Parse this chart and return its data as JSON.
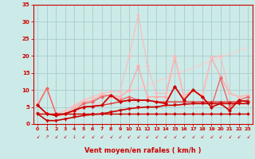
{
  "background_color": "#cceae7",
  "grid_color": "#aacccc",
  "xlabel": "Vent moyen/en rafales ( km/h )",
  "xlabel_color": "#cc0000",
  "axis_color": "#cc0000",
  "tick_color": "#cc0000",
  "xlim": [
    -0.5,
    23.5
  ],
  "ylim": [
    0,
    35
  ],
  "yticks": [
    0,
    5,
    10,
    15,
    20,
    25,
    30,
    35
  ],
  "xticks": [
    0,
    1,
    2,
    3,
    4,
    5,
    6,
    7,
    8,
    9,
    10,
    11,
    12,
    13,
    14,
    15,
    16,
    17,
    18,
    19,
    20,
    21,
    22,
    23
  ],
  "series": [
    {
      "x": [
        0,
        1,
        2,
        3,
        4,
        5,
        6,
        7,
        8,
        9,
        10,
        11,
        12,
        13,
        14,
        15,
        16,
        17,
        18,
        19,
        20,
        21,
        22,
        23
      ],
      "y": [
        3.0,
        3.0,
        3.0,
        3.0,
        3.0,
        3.0,
        3.0,
        3.0,
        3.0,
        3.0,
        3.0,
        3.0,
        3.0,
        3.0,
        3.0,
        3.0,
        3.0,
        3.0,
        3.0,
        3.0,
        3.0,
        3.0,
        3.0,
        3.0
      ],
      "color": "#cc0000",
      "lw": 1.0,
      "marker": "D",
      "ms": 1.8,
      "zorder": 4
    },
    {
      "x": [
        0,
        1,
        2,
        3,
        4,
        5,
        6,
        7,
        8,
        9,
        10,
        11,
        12,
        13,
        14,
        15,
        16,
        17,
        18,
        19,
        20,
        21,
        22,
        23
      ],
      "y": [
        3.0,
        1.0,
        1.0,
        1.5,
        2.0,
        2.5,
        2.8,
        3.0,
        3.5,
        4.0,
        4.5,
        4.8,
        5.0,
        5.0,
        5.5,
        5.5,
        5.8,
        6.0,
        6.0,
        6.0,
        6.0,
        6.0,
        6.0,
        6.0
      ],
      "color": "#cc0000",
      "lw": 1.2,
      "marker": "v",
      "ms": 2.5,
      "zorder": 4
    },
    {
      "x": [
        0,
        1,
        2,
        3,
        4,
        5,
        6,
        7,
        8,
        9,
        10,
        11,
        12,
        13,
        14,
        15,
        16,
        17,
        18,
        19,
        20,
        21,
        22,
        23
      ],
      "y": [
        5.5,
        3.0,
        2.5,
        3.0,
        4.0,
        5.0,
        5.2,
        5.5,
        6.0,
        6.5,
        7.0,
        7.0,
        7.0,
        6.5,
        6.5,
        6.5,
        6.5,
        6.5,
        6.5,
        6.5,
        6.5,
        6.5,
        6.5,
        7.0
      ],
      "color": "#dd3333",
      "lw": 1.0,
      "marker": "+",
      "ms": 3.0,
      "zorder": 3
    },
    {
      "x": [
        0,
        1,
        2,
        3,
        4,
        5,
        6,
        7,
        8,
        9,
        10,
        11,
        12,
        13,
        14,
        15,
        16,
        17,
        18,
        19,
        20,
        21,
        22,
        23
      ],
      "y": [
        5.5,
        3.0,
        2.5,
        3.0,
        4.0,
        5.0,
        5.2,
        5.5,
        8.5,
        6.5,
        7.0,
        7.0,
        7.0,
        6.5,
        6.0,
        11.0,
        7.0,
        10.0,
        8.0,
        5.0,
        6.0,
        4.0,
        7.0,
        6.5
      ],
      "color": "#cc0000",
      "lw": 1.2,
      "marker": "D",
      "ms": 2.0,
      "zorder": 4
    },
    {
      "x": [
        0,
        1,
        2,
        3,
        4,
        5,
        6,
        7,
        8,
        9,
        10,
        11,
        12,
        13,
        14,
        15,
        16,
        17,
        18,
        19,
        20,
        21,
        22,
        23
      ],
      "y": [
        5.5,
        10.5,
        3.0,
        3.0,
        4.0,
        6.0,
        6.5,
        8.0,
        8.5,
        7.0,
        8.0,
        7.0,
        7.0,
        6.5,
        6.0,
        11.0,
        7.0,
        10.0,
        8.0,
        5.0,
        13.5,
        5.0,
        7.0,
        8.0
      ],
      "color": "#ee6666",
      "lw": 1.0,
      "marker": "D",
      "ms": 2.0,
      "zorder": 3
    },
    {
      "x": [
        0,
        1,
        2,
        3,
        4,
        5,
        6,
        7,
        8,
        9,
        10,
        11,
        12,
        13,
        14,
        15,
        16,
        17,
        18,
        19,
        20,
        21,
        22,
        23
      ],
      "y": [
        6.0,
        10.5,
        3.0,
        3.0,
        5.0,
        6.5,
        7.0,
        8.5,
        8.5,
        8.0,
        10.0,
        17.0,
        8.0,
        8.0,
        8.0,
        19.5,
        8.0,
        10.0,
        8.0,
        19.5,
        14.0,
        9.0,
        8.0,
        8.5
      ],
      "color": "#ffaaaa",
      "lw": 1.0,
      "marker": "D",
      "ms": 2.0,
      "zorder": 2
    },
    {
      "x": [
        0,
        1,
        2,
        3,
        4,
        5,
        6,
        7,
        8,
        9,
        10,
        11,
        12,
        13,
        14,
        15,
        16,
        17,
        18,
        19,
        20,
        21,
        22,
        23
      ],
      "y": [
        6.0,
        10.5,
        3.0,
        4.0,
        5.5,
        7.0,
        8.0,
        9.0,
        9.5,
        9.5,
        20.0,
        32.0,
        17.0,
        9.0,
        9.0,
        20.0,
        8.5,
        10.0,
        8.5,
        19.5,
        20.0,
        9.0,
        8.0,
        8.5
      ],
      "color": "#ffbbbb",
      "lw": 0.8,
      "marker": "D",
      "ms": 1.8,
      "zorder": 2
    },
    {
      "x": [
        0,
        1,
        2,
        3,
        4,
        5,
        6,
        7,
        8,
        9,
        10,
        11,
        12,
        13,
        14,
        15,
        16,
        17,
        18,
        19,
        20,
        21,
        22,
        23
      ],
      "y": [
        3.0,
        3.5,
        2.5,
        2.5,
        3.5,
        4.5,
        5.5,
        6.5,
        7.5,
        8.5,
        9.5,
        10.5,
        11.5,
        12.5,
        13.5,
        14.5,
        15.5,
        16.5,
        17.5,
        18.5,
        19.5,
        20.5,
        21.5,
        22.5
      ],
      "color": "#ffcccc",
      "lw": 0.8,
      "marker": null,
      "ms": 0,
      "zorder": 1
    }
  ],
  "wind_arrow_chars": [
    "↙",
    "↗",
    "↙",
    "↙",
    "↓",
    "↙",
    "↙",
    "↙",
    "↙",
    "↙",
    "↙",
    "↙",
    "↙",
    "↙",
    "↙",
    "↙",
    "↙",
    "↙",
    "↙",
    "↙",
    "↙",
    "↙",
    "↙",
    "↙"
  ]
}
